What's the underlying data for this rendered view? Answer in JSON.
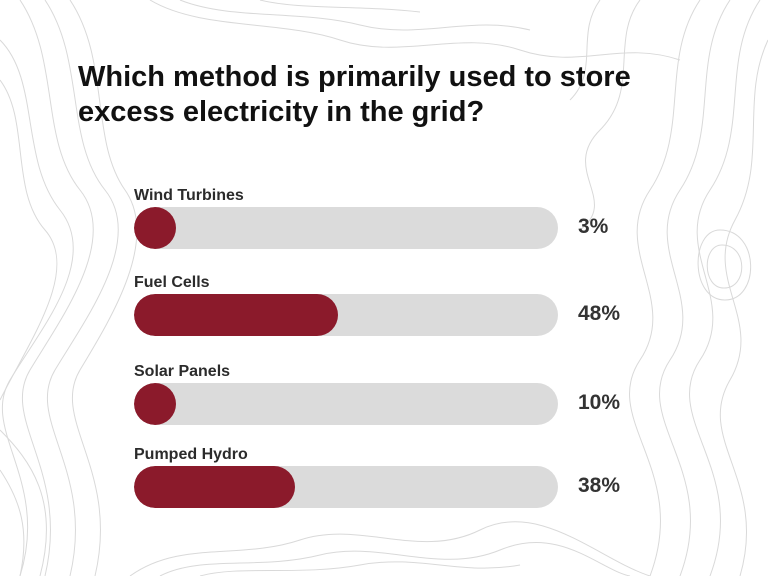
{
  "title": "Which method is primarily used to store excess electricity in the grid?",
  "chart_data": {
    "type": "bar",
    "orientation": "horizontal",
    "title": "Which method is primarily used to store excess electricity in the grid?",
    "categories": [
      "Wind Turbines",
      "Fuel Cells",
      "Solar Panels",
      "Pumped Hydro"
    ],
    "values": [
      3,
      48,
      10,
      38
    ],
    "labels": [
      "3%",
      "48%",
      "10%",
      "38%"
    ],
    "xlim": [
      0,
      100
    ],
    "grid": false,
    "colors": {
      "fill": "#8b1a2b",
      "track": "#dbdbdb",
      "text": "#333333"
    }
  }
}
